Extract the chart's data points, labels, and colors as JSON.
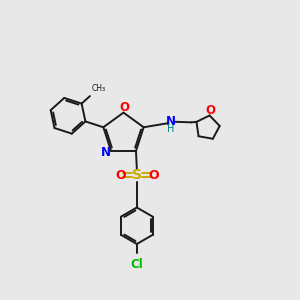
{
  "background_color": "#e8e8e8",
  "bond_color": "#1a1a1a",
  "N_color": "#0000ff",
  "O_color": "#ff0000",
  "S_color": "#ccaa00",
  "Cl_color": "#00bb00",
  "H_color": "#008080",
  "figsize": [
    3.0,
    3.0
  ],
  "dpi": 100,
  "xlim": [
    0,
    10
  ],
  "ylim": [
    0,
    10
  ]
}
